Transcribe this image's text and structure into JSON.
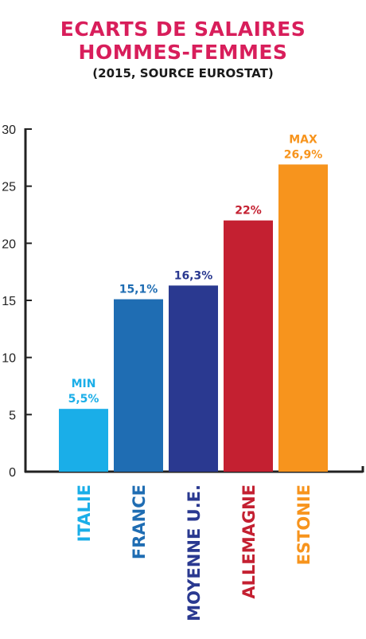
{
  "chart_data": {
    "type": "bar",
    "title_lines": [
      "ECARTS DE SALAIRES",
      "HOMMES-FEMMES"
    ],
    "subtitle": "(2015, SOURCE EUROSTAT)",
    "categories": [
      "ITALIE",
      "FRANCE",
      "MOYENNE U.E.",
      "ALLEMAGNE",
      "ESTONIE"
    ],
    "values": [
      5.5,
      15.1,
      16.3,
      22,
      26.9
    ],
    "value_labels": [
      "5,5%",
      "15,1%",
      "16,3%",
      "22%",
      "26,9%"
    ],
    "annotations": [
      "MIN",
      "",
      "",
      "",
      "MAX"
    ],
    "colors": [
      "#1aaee8",
      "#1f6db3",
      "#2a3990",
      "#c42031",
      "#f7941d"
    ],
    "ylim": [
      0,
      30
    ],
    "yticks": [
      "0",
      "5",
      "10",
      "15",
      "20",
      "25",
      "30"
    ],
    "xlabel": "",
    "ylabel": "",
    "grid": false
  }
}
